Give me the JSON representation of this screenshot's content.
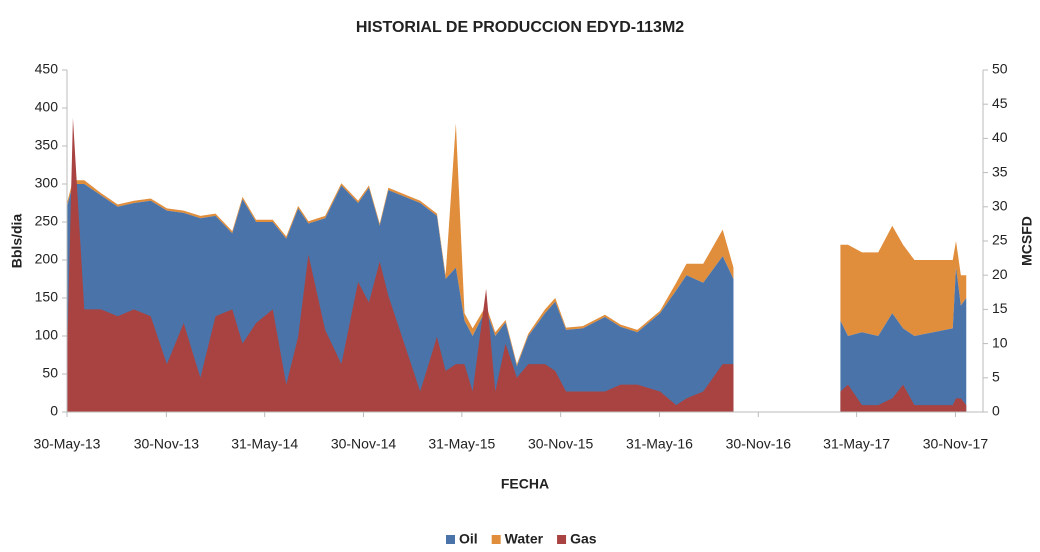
{
  "chart_data": {
    "type": "area",
    "title": "HISTORIAL DE PRODUCCION EDYD-113M2",
    "x_label": "FECHA",
    "y_label": "Bbls/dia",
    "y2_label": "MCSFD",
    "stacked": true,
    "x": [
      "2013-05-30",
      "2013-06-10",
      "2013-07-01",
      "2013-08-01",
      "2013-09-01",
      "2013-10-01",
      "2013-11-01",
      "2013-12-01",
      "2014-01-01",
      "2014-02-01",
      "2014-03-01",
      "2014-04-01",
      "2014-04-20",
      "2014-05-15",
      "2014-06-15",
      "2014-07-10",
      "2014-08-01",
      "2014-08-20",
      "2014-09-20",
      "2014-10-20",
      "2014-11-20",
      "2014-12-10",
      "2014-12-30",
      "2015-01-15",
      "2015-03-15",
      "2015-04-15",
      "2015-05-01",
      "2015-05-20",
      "2015-06-05",
      "2015-06-20",
      "2015-07-15",
      "2015-08-01",
      "2015-08-20",
      "2015-09-10",
      "2015-10-01",
      "2015-11-01",
      "2015-11-20",
      "2015-12-10",
      "2016-01-10",
      "2016-02-20",
      "2016-03-20",
      "2016-04-20",
      "2016-06-01",
      "2016-07-01",
      "2016-07-20",
      "2016-08-20",
      "2016-09-25",
      "2016-10-15",
      "2016-12-31",
      "2017-05-01",
      "2017-05-15",
      "2017-06-10",
      "2017-07-10",
      "2017-08-05",
      "2017-08-25",
      "2017-09-15",
      "2017-11-25",
      "2017-12-01",
      "2017-12-10",
      "2017-12-20"
    ],
    "series": [
      {
        "name": "Oil",
        "color": "#4a74a9",
        "values": [
          270,
          300,
          300,
          285,
          270,
          275,
          278,
          265,
          262,
          255,
          258,
          235,
          280,
          250,
          250,
          228,
          268,
          248,
          255,
          298,
          275,
          295,
          245,
          292,
          275,
          258,
          175,
          190,
          120,
          100,
          135,
          100,
          118,
          60,
          100,
          130,
          145,
          108,
          110,
          125,
          112,
          105,
          130,
          160,
          180,
          170,
          205,
          175,
          null,
          120,
          100,
          105,
          100,
          130,
          110,
          100,
          110,
          190,
          140,
          150
        ]
      },
      {
        "name": "Water",
        "color": "#e08d3c",
        "values": [
          5,
          5,
          5,
          3,
          3,
          3,
          3,
          3,
          3,
          3,
          3,
          3,
          3,
          3,
          3,
          3,
          3,
          3,
          3,
          3,
          3,
          3,
          3,
          3,
          3,
          3,
          5,
          190,
          10,
          10,
          5,
          5,
          3,
          3,
          3,
          5,
          5,
          3,
          3,
          3,
          3,
          3,
          3,
          10,
          15,
          25,
          35,
          15,
          null,
          100,
          120,
          105,
          110,
          115,
          110,
          100,
          90,
          35,
          40,
          30
        ]
      },
      {
        "name": "Gas",
        "color": "#a84341",
        "axis": "y2",
        "values": [
          8,
          43,
          15,
          15,
          14,
          15,
          14,
          7,
          13,
          5,
          14,
          15,
          10,
          13,
          15,
          4,
          11,
          23,
          12,
          7,
          19,
          16,
          22,
          17,
          3,
          11,
          6,
          7,
          7,
          3,
          18,
          3,
          10,
          5,
          7,
          7,
          6,
          3,
          3,
          3,
          4,
          4,
          3,
          1,
          2,
          3,
          7,
          7,
          null,
          3,
          4,
          1,
          1,
          2,
          4,
          1,
          1,
          2,
          2,
          1
        ]
      }
    ],
    "xlim": [
      "2013-05-30",
      "2018-01-20"
    ],
    "xticks": [
      {
        "value": "2013-05-30",
        "label": "30-May-13"
      },
      {
        "value": "2013-11-30",
        "label": "30-Nov-13"
      },
      {
        "value": "2014-05-31",
        "label": "31-May-14"
      },
      {
        "value": "2014-11-30",
        "label": "30-Nov-14"
      },
      {
        "value": "2015-05-31",
        "label": "31-May-15"
      },
      {
        "value": "2015-11-30",
        "label": "30-Nov-15"
      },
      {
        "value": "2016-05-31",
        "label": "31-May-16"
      },
      {
        "value": "2016-11-30",
        "label": "30-Nov-16"
      },
      {
        "value": "2017-05-31",
        "label": "31-May-17"
      },
      {
        "value": "2017-11-30",
        "label": "30-Nov-17"
      }
    ],
    "ylim": [
      0,
      450
    ],
    "yticks": [
      0,
      50,
      100,
      150,
      200,
      250,
      300,
      350,
      400,
      450
    ],
    "y2lim": [
      0,
      50
    ],
    "y2ticks": [
      0,
      5,
      10,
      15,
      20,
      25,
      30,
      35,
      40,
      45,
      50
    ],
    "legend": "bottom"
  }
}
